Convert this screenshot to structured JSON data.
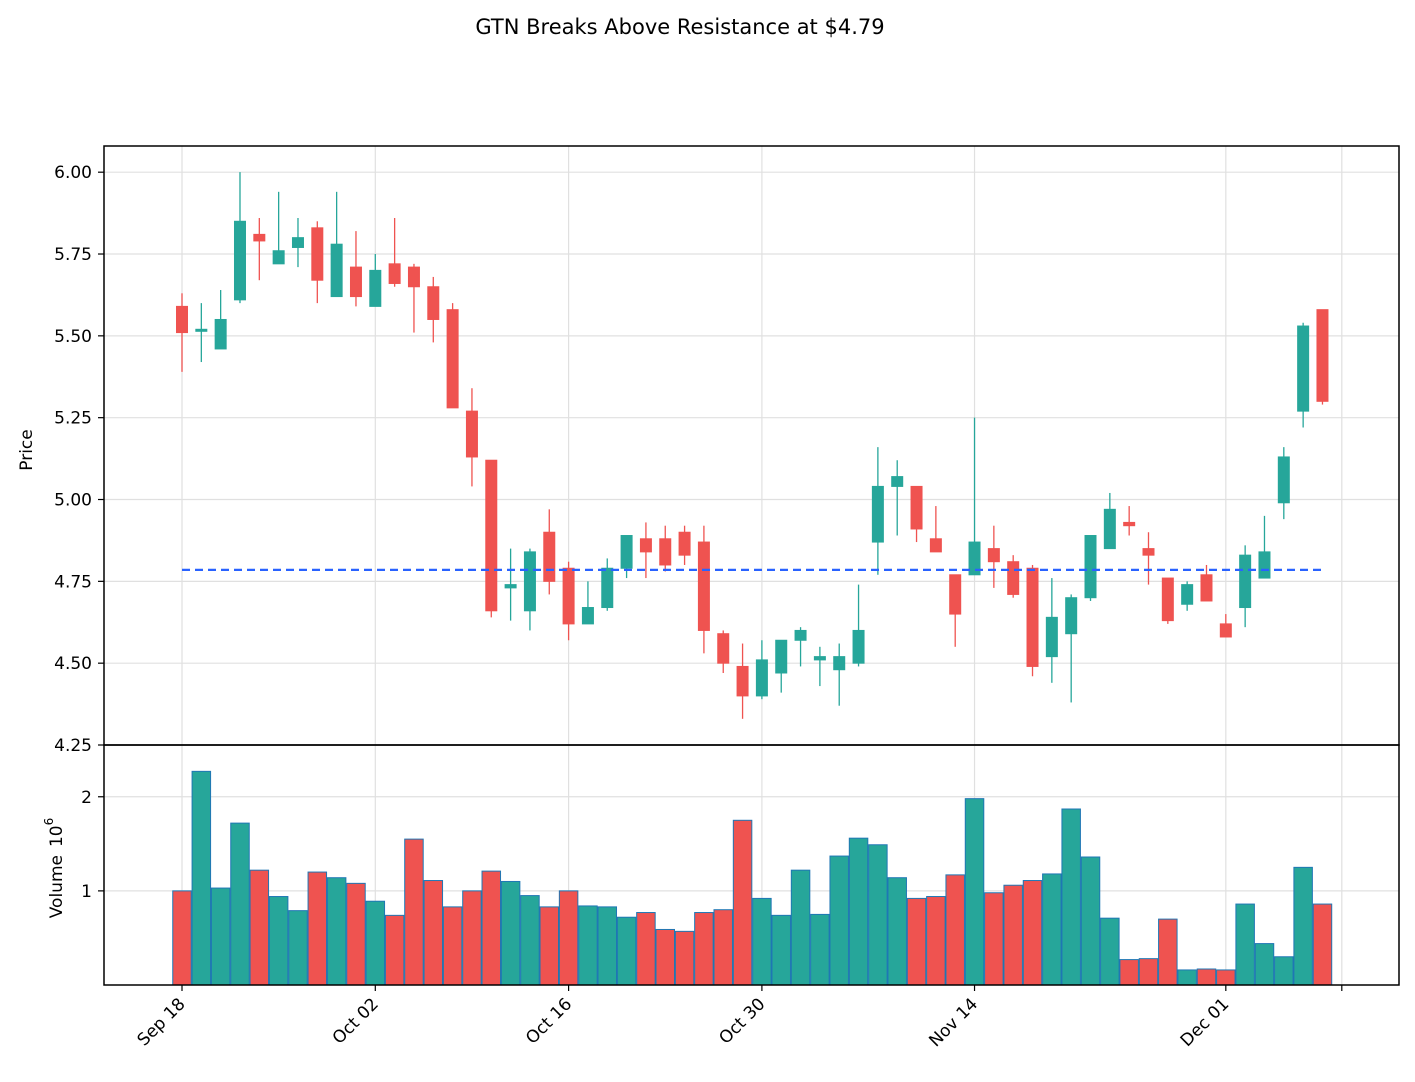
{
  "chart_data": {
    "type": "candlestick",
    "title": "GTN Breaks Above Resistance at $4.79",
    "price_ylabel": "Price",
    "volume_ylabel": "Volume",
    "volume_exponent_label": "10",
    "volume_exponent": "6",
    "price_ylim": [
      4.25,
      6.08
    ],
    "volume_ylim": [
      0,
      2.55
    ],
    "price_ticks": [
      "4.25",
      "4.50",
      "4.75",
      "5.00",
      "5.25",
      "5.50",
      "5.75",
      "6.00"
    ],
    "volume_ticks": [
      "1",
      "2"
    ],
    "date_ticks": [
      "Sep 18",
      "Oct 02",
      "Oct 16",
      "Oct 30",
      "Nov 14",
      "Dec 01"
    ],
    "resistance": 4.785,
    "grid": true,
    "colors": {
      "up": "#26a69a",
      "down": "#ef5350",
      "resistance": "#2962ff",
      "volume_edge": "#1f77b4"
    },
    "candles": [
      {
        "date": "Sep 18",
        "open": 5.59,
        "high": 5.63,
        "low": 5.39,
        "close": 5.51,
        "volume": 1.0
      },
      {
        "date": "Sep 19",
        "open": 5.52,
        "high": 5.6,
        "low": 5.42,
        "close": 5.52,
        "volume": 2.27
      },
      {
        "date": "Sep 20",
        "open": 5.46,
        "high": 5.64,
        "low": 5.46,
        "close": 5.55,
        "volume": 1.03
      },
      {
        "date": "Sep 21",
        "open": 5.61,
        "high": 6.0,
        "low": 5.6,
        "close": 5.85,
        "volume": 1.72
      },
      {
        "date": "Sep 22",
        "open": 5.81,
        "high": 5.86,
        "low": 5.67,
        "close": 5.79,
        "volume": 1.22
      },
      {
        "date": "Sep 25",
        "open": 5.72,
        "high": 5.94,
        "low": 5.72,
        "close": 5.76,
        "volume": 0.94
      },
      {
        "date": "Sep 26",
        "open": 5.77,
        "high": 5.86,
        "low": 5.71,
        "close": 5.8,
        "volume": 0.79
      },
      {
        "date": "Sep 27",
        "open": 5.83,
        "high": 5.85,
        "low": 5.6,
        "close": 5.67,
        "volume": 1.2
      },
      {
        "date": "Sep 28",
        "open": 5.62,
        "high": 5.94,
        "low": 5.62,
        "close": 5.78,
        "volume": 1.14
      },
      {
        "date": "Sep 29",
        "open": 5.71,
        "high": 5.82,
        "low": 5.59,
        "close": 5.62,
        "volume": 1.08
      },
      {
        "date": "Oct 02",
        "open": 5.59,
        "high": 5.75,
        "low": 5.59,
        "close": 5.7,
        "volume": 0.89
      },
      {
        "date": "Oct 03",
        "open": 5.72,
        "high": 5.86,
        "low": 5.65,
        "close": 5.66,
        "volume": 0.74
      },
      {
        "date": "Oct 04",
        "open": 5.71,
        "high": 5.72,
        "low": 5.51,
        "close": 5.65,
        "volume": 1.55
      },
      {
        "date": "Oct 05",
        "open": 5.65,
        "high": 5.68,
        "low": 5.48,
        "close": 5.55,
        "volume": 1.11
      },
      {
        "date": "Oct 06",
        "open": 5.58,
        "high": 5.6,
        "low": 5.28,
        "close": 5.28,
        "volume": 0.83
      },
      {
        "date": "Oct 09",
        "open": 5.27,
        "high": 5.34,
        "low": 5.04,
        "close": 5.13,
        "volume": 1.0
      },
      {
        "date": "Oct 10",
        "open": 5.12,
        "high": 5.12,
        "low": 4.64,
        "close": 4.66,
        "volume": 1.21
      },
      {
        "date": "Oct 11",
        "open": 4.73,
        "high": 4.85,
        "low": 4.63,
        "close": 4.74,
        "volume": 1.1
      },
      {
        "date": "Oct 12",
        "open": 4.66,
        "high": 4.85,
        "low": 4.6,
        "close": 4.84,
        "volume": 0.95
      },
      {
        "date": "Oct 13",
        "open": 4.9,
        "high": 4.97,
        "low": 4.71,
        "close": 4.75,
        "volume": 0.83
      },
      {
        "date": "Oct 16",
        "open": 4.79,
        "high": 4.81,
        "low": 4.57,
        "close": 4.62,
        "volume": 1.0
      },
      {
        "date": "Oct 17",
        "open": 4.62,
        "high": 4.75,
        "low": 4.62,
        "close": 4.67,
        "volume": 0.84
      },
      {
        "date": "Oct 18",
        "open": 4.67,
        "high": 4.82,
        "low": 4.66,
        "close": 4.79,
        "volume": 0.83
      },
      {
        "date": "Oct 19",
        "open": 4.79,
        "high": 4.89,
        "low": 4.76,
        "close": 4.89,
        "volume": 0.72
      },
      {
        "date": "Oct 20",
        "open": 4.88,
        "high": 4.93,
        "low": 4.76,
        "close": 4.84,
        "volume": 0.77
      },
      {
        "date": "Oct 23",
        "open": 4.88,
        "high": 4.92,
        "low": 4.78,
        "close": 4.8,
        "volume": 0.59
      },
      {
        "date": "Oct 24",
        "open": 4.9,
        "high": 4.92,
        "low": 4.8,
        "close": 4.83,
        "volume": 0.57
      },
      {
        "date": "Oct 25",
        "open": 4.87,
        "high": 4.92,
        "low": 4.53,
        "close": 4.6,
        "volume": 0.77
      },
      {
        "date": "Oct 26",
        "open": 4.59,
        "high": 4.6,
        "low": 4.47,
        "close": 4.5,
        "volume": 0.8
      },
      {
        "date": "Oct 27",
        "open": 4.49,
        "high": 4.56,
        "low": 4.33,
        "close": 4.4,
        "volume": 1.75
      },
      {
        "date": "Oct 30",
        "open": 4.4,
        "high": 4.57,
        "low": 4.39,
        "close": 4.51,
        "volume": 0.92
      },
      {
        "date": "Oct 31",
        "open": 4.47,
        "high": 4.57,
        "low": 4.41,
        "close": 4.57,
        "volume": 0.74
      },
      {
        "date": "Nov 01",
        "open": 4.57,
        "high": 4.61,
        "low": 4.49,
        "close": 4.6,
        "volume": 1.22
      },
      {
        "date": "Nov 02",
        "open": 4.51,
        "high": 4.55,
        "low": 4.43,
        "close": 4.52,
        "volume": 0.75
      },
      {
        "date": "Nov 03",
        "open": 4.48,
        "high": 4.56,
        "low": 4.37,
        "close": 4.52,
        "volume": 1.37
      },
      {
        "date": "Nov 06",
        "open": 4.5,
        "high": 4.74,
        "low": 4.49,
        "close": 4.6,
        "volume": 1.56
      },
      {
        "date": "Nov 07",
        "open": 4.87,
        "high": 5.16,
        "low": 4.77,
        "close": 5.04,
        "volume": 1.49
      },
      {
        "date": "Nov 08",
        "open": 5.04,
        "high": 5.12,
        "low": 4.89,
        "close": 5.07,
        "volume": 1.14
      },
      {
        "date": "Nov 09",
        "open": 5.04,
        "high": 5.04,
        "low": 4.87,
        "close": 4.91,
        "volume": 0.92
      },
      {
        "date": "Nov 10",
        "open": 4.88,
        "high": 4.98,
        "low": 4.84,
        "close": 4.84,
        "volume": 0.94
      },
      {
        "date": "Nov 13",
        "open": 4.77,
        "high": 4.77,
        "low": 4.55,
        "close": 4.65,
        "volume": 1.17
      },
      {
        "date": "Nov 14",
        "open": 4.77,
        "high": 5.25,
        "low": 4.77,
        "close": 4.87,
        "volume": 1.98
      },
      {
        "date": "Nov 15",
        "open": 4.85,
        "high": 4.92,
        "low": 4.73,
        "close": 4.81,
        "volume": 0.98
      },
      {
        "date": "Nov 16",
        "open": 4.81,
        "high": 4.83,
        "low": 4.7,
        "close": 4.71,
        "volume": 1.06
      },
      {
        "date": "Nov 17",
        "open": 4.79,
        "high": 4.8,
        "low": 4.46,
        "close": 4.49,
        "volume": 1.11
      },
      {
        "date": "Nov 20",
        "open": 4.52,
        "high": 4.76,
        "low": 4.44,
        "close": 4.64,
        "volume": 1.18
      },
      {
        "date": "Nov 21",
        "open": 4.59,
        "high": 4.71,
        "low": 4.38,
        "close": 4.7,
        "volume": 1.87
      },
      {
        "date": "Nov 22",
        "open": 4.7,
        "high": 4.89,
        "low": 4.69,
        "close": 4.89,
        "volume": 1.36
      },
      {
        "date": "Nov 23",
        "open": 4.85,
        "high": 5.02,
        "low": 4.85,
        "close": 4.97,
        "volume": 0.71
      },
      {
        "date": "Nov 24",
        "open": 4.93,
        "high": 4.98,
        "low": 4.89,
        "close": 4.92,
        "volume": 0.27
      },
      {
        "date": "Nov 27",
        "open": 4.85,
        "high": 4.9,
        "low": 4.74,
        "close": 4.83,
        "volume": 0.28
      },
      {
        "date": "Nov 28",
        "open": 4.76,
        "high": 4.76,
        "low": 4.62,
        "close": 4.63,
        "volume": 0.7
      },
      {
        "date": "Nov 29",
        "open": 4.68,
        "high": 4.75,
        "low": 4.66,
        "close": 4.74,
        "volume": 0.16
      },
      {
        "date": "Nov 30",
        "open": 4.77,
        "high": 4.8,
        "low": 4.69,
        "close": 4.69,
        "volume": 0.17
      },
      {
        "date": "Dec 01",
        "open": 4.62,
        "high": 4.65,
        "low": 4.58,
        "close": 4.58,
        "volume": 0.16
      },
      {
        "date": "Dec 04",
        "open": 4.67,
        "high": 4.86,
        "low": 4.61,
        "close": 4.83,
        "volume": 0.86
      },
      {
        "date": "Dec 05",
        "open": 4.76,
        "high": 4.95,
        "low": 4.76,
        "close": 4.84,
        "volume": 0.44
      },
      {
        "date": "Dec 06",
        "open": 4.99,
        "high": 5.16,
        "low": 4.94,
        "close": 5.13,
        "volume": 0.3
      },
      {
        "date": "Dec 07",
        "open": 5.27,
        "high": 5.54,
        "low": 5.22,
        "close": 5.53,
        "volume": 1.25
      },
      {
        "date": "Dec 08",
        "open": 5.58,
        "high": 5.58,
        "low": 5.29,
        "close": 5.3,
        "volume": 0.86
      }
    ]
  }
}
